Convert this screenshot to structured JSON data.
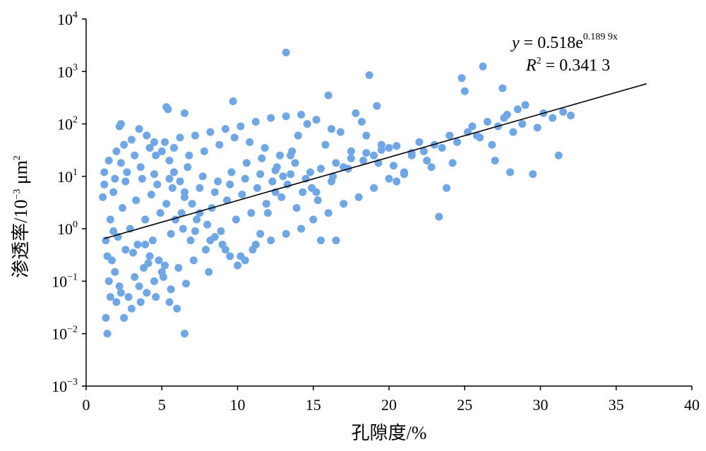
{
  "chart_data": {
    "type": "scatter",
    "title": "",
    "xlabel": "孔隙度/%",
    "ylabel_prefix": "渗透率/10",
    "ylabel_exp": "−3",
    "ylabel_unit": " μm",
    "ylabel_unit_exp": "2",
    "xlim": [
      0,
      40
    ],
    "ylim": [
      0.001,
      10000
    ],
    "yscale": "log",
    "x_ticks": [
      0,
      5,
      10,
      15,
      20,
      25,
      30,
      35,
      40
    ],
    "x_tick_labels": [
      "0",
      "5",
      "10",
      "15",
      "20",
      "25",
      "30",
      "35",
      "40"
    ],
    "y_ticks": [
      0.001,
      0.01,
      0.1,
      1,
      10,
      100,
      1000,
      10000
    ],
    "y_tick_base": "10",
    "y_tick_exps": [
      "−3",
      "−2",
      "−1",
      "0",
      "1",
      "2",
      "3",
      "4"
    ],
    "grid": false,
    "legend": "none",
    "point_color": "#6ea6e6",
    "trend_color": "#000000",
    "trendline": {
      "a": 0.518,
      "b": 0.1899,
      "x_start": 1.2,
      "x_end": 37.0
    },
    "annotation": {
      "eq_y": "y",
      "eq_mid": " = 0.518e",
      "eq_exp": "0.189 9x",
      "r2_r": "R",
      "r2_sup": "2",
      "r2_rest": " = 0.341 3"
    },
    "series": [
      {
        "points": [
          [
            13.2,
            2300
          ],
          [
            18.7,
            850
          ],
          [
            24.8,
            750
          ],
          [
            26.2,
            1250
          ],
          [
            27.5,
            480
          ],
          [
            25.0,
            420
          ],
          [
            16.0,
            350
          ],
          [
            9.7,
            270
          ],
          [
            5.3,
            210
          ],
          [
            5.4,
            190
          ],
          [
            6.5,
            160
          ],
          [
            2.3,
            100
          ],
          [
            2.2,
            90
          ],
          [
            30.8,
            130
          ],
          [
            31.5,
            170
          ],
          [
            32.0,
            145
          ],
          [
            29.0,
            230
          ],
          [
            28.5,
            190
          ],
          [
            27.8,
            150
          ],
          [
            26.5,
            110
          ],
          [
            25.5,
            90
          ],
          [
            24.0,
            60
          ],
          [
            23.5,
            35
          ],
          [
            22.5,
            20
          ],
          [
            21.0,
            12
          ],
          [
            20.5,
            8
          ],
          [
            28.0,
            12
          ],
          [
            29.5,
            11
          ],
          [
            27.0,
            20
          ],
          [
            31.2,
            25
          ],
          [
            23.3,
            1.7
          ],
          [
            23.8,
            6
          ],
          [
            26.0,
            55
          ],
          [
            24.5,
            45
          ],
          [
            19.5,
            40
          ],
          [
            19.0,
            25
          ],
          [
            18.5,
            60
          ],
          [
            17.5,
            30
          ],
          [
            17.0,
            15
          ],
          [
            16.5,
            0.6
          ],
          [
            15.5,
            0.6
          ],
          [
            17.8,
            160
          ],
          [
            19.2,
            220
          ],
          [
            18.2,
            110
          ],
          [
            20.0,
            35
          ],
          [
            21.5,
            28
          ],
          [
            22.0,
            45
          ],
          [
            16.8,
            70
          ],
          [
            15.8,
            40
          ],
          [
            14.6,
            100
          ],
          [
            14.0,
            60
          ],
          [
            13.5,
            25
          ],
          [
            13.0,
            10
          ],
          [
            12.5,
            5
          ],
          [
            12.0,
            2
          ],
          [
            11.5,
            0.8
          ],
          [
            11.0,
            0.4
          ],
          [
            10.5,
            0.25
          ],
          [
            10.0,
            0.2
          ],
          [
            9.5,
            0.3
          ],
          [
            9.0,
            0.5
          ],
          [
            8.5,
            0.7
          ],
          [
            8.0,
            1.2
          ],
          [
            7.5,
            2
          ],
          [
            7.0,
            3
          ],
          [
            6.5,
            5
          ],
          [
            6.2,
            8
          ],
          [
            5.8,
            12
          ],
          [
            5.5,
            20
          ],
          [
            5.0,
            30
          ],
          [
            4.5,
            45
          ],
          [
            4.0,
            60
          ],
          [
            3.5,
            80
          ],
          [
            3.0,
            50
          ],
          [
            2.5,
            40
          ],
          [
            2.0,
            30
          ],
          [
            1.5,
            20
          ],
          [
            1.2,
            12
          ],
          [
            1.3,
            0.6
          ],
          [
            1.4,
            0.3
          ],
          [
            1.5,
            0.1
          ],
          [
            1.6,
            0.05
          ],
          [
            1.3,
            0.02
          ],
          [
            1.4,
            0.01
          ],
          [
            6.5,
            0.01
          ],
          [
            6.0,
            0.03
          ],
          [
            5.5,
            0.04
          ],
          [
            2.5,
            0.02
          ],
          [
            3.0,
            0.03
          ],
          [
            2.8,
            0.05
          ],
          [
            3.5,
            0.08
          ],
          [
            4.0,
            0.06
          ],
          [
            4.5,
            0.1
          ],
          [
            5.0,
            0.15
          ],
          [
            5.2,
            0.2
          ],
          [
            4.8,
            0.25
          ],
          [
            4.2,
            0.3
          ],
          [
            3.8,
            0.18
          ],
          [
            3.2,
            0.12
          ],
          [
            2.2,
            0.08
          ],
          [
            1.9,
            0.15
          ],
          [
            1.7,
            0.25
          ],
          [
            2.6,
            0.4
          ],
          [
            3.4,
            0.5
          ],
          [
            4.4,
            0.6
          ],
          [
            5.6,
            0.8
          ],
          [
            6.4,
            1.0
          ],
          [
            7.2,
            0.9
          ],
          [
            8.2,
            0.6
          ],
          [
            9.2,
            0.4
          ],
          [
            10.2,
            0.3
          ],
          [
            11.2,
            0.5
          ],
          [
            12.2,
            0.6
          ],
          [
            13.2,
            0.8
          ],
          [
            14.2,
            1.0
          ],
          [
            15.0,
            1.5
          ],
          [
            16.0,
            2.0
          ],
          [
            17.0,
            3.0
          ],
          [
            18.0,
            4.0
          ],
          [
            19.0,
            6.0
          ],
          [
            20.0,
            9.0
          ],
          [
            21.0,
            11.0
          ],
          [
            15.2,
            5
          ],
          [
            16.2,
            8
          ],
          [
            14.8,
            12
          ],
          [
            13.8,
            18
          ],
          [
            12.8,
            25
          ],
          [
            11.8,
            35
          ],
          [
            10.8,
            45
          ],
          [
            9.8,
            55
          ],
          [
            8.8,
            40
          ],
          [
            7.8,
            30
          ],
          [
            6.8,
            25
          ],
          [
            5.8,
            35
          ],
          [
            4.6,
            25
          ],
          [
            3.6,
            15
          ],
          [
            2.6,
            8
          ],
          [
            1.8,
            5
          ],
          [
            1.1,
            4
          ],
          [
            2.4,
            2.5
          ],
          [
            3.3,
            3.5
          ],
          [
            4.3,
            4.5
          ],
          [
            5.3,
            3.0
          ],
          [
            6.3,
            2.0
          ],
          [
            7.3,
            1.5
          ],
          [
            8.3,
            2.5
          ],
          [
            9.3,
            3.5
          ],
          [
            10.3,
            4.5
          ],
          [
            11.3,
            6.0
          ],
          [
            12.3,
            8.0
          ],
          [
            13.3,
            7.0
          ],
          [
            14.3,
            5.0
          ],
          [
            15.3,
            3.5
          ],
          [
            16.3,
            10
          ],
          [
            17.3,
            14
          ],
          [
            18.3,
            20
          ],
          [
            19.3,
            18
          ],
          [
            20.3,
            16
          ],
          [
            22.3,
            30
          ],
          [
            23.0,
            40
          ],
          [
            25.2,
            70
          ],
          [
            27.2,
            90
          ],
          [
            28.8,
            100
          ],
          [
            2.9,
            1.0
          ],
          [
            3.9,
            1.5
          ],
          [
            4.9,
            2.0
          ],
          [
            5.9,
            1.5
          ],
          [
            6.9,
            0.6
          ],
          [
            7.9,
            0.4
          ],
          [
            8.9,
            0.9
          ],
          [
            9.9,
            1.5
          ],
          [
            10.9,
            2.0
          ],
          [
            11.9,
            3.0
          ],
          [
            12.9,
            4.0
          ],
          [
            13.9,
            2.5
          ],
          [
            14.9,
            6.0
          ],
          [
            1.6,
            1.5
          ],
          [
            2.1,
            0.7
          ],
          [
            3.1,
            0.35
          ],
          [
            4.1,
            0.22
          ],
          [
            5.1,
            0.12
          ],
          [
            6.1,
            0.18
          ],
          [
            7.1,
            0.25
          ],
          [
            8.1,
            0.15
          ],
          [
            2.7,
            12
          ],
          [
            3.7,
            9
          ],
          [
            4.7,
            7
          ],
          [
            5.7,
            6
          ],
          [
            6.7,
            15
          ],
          [
            7.7,
            10
          ],
          [
            8.7,
            8
          ],
          [
            9.6,
            12
          ],
          [
            10.6,
            18
          ],
          [
            11.6,
            22
          ],
          [
            12.6,
            15
          ],
          [
            13.6,
            30
          ],
          [
            1.2,
            7
          ],
          [
            1.9,
            9
          ],
          [
            2.3,
            18
          ],
          [
            3.2,
            25
          ],
          [
            4.2,
            35
          ],
          [
            5.2,
            45
          ],
          [
            6.2,
            55
          ],
          [
            7.2,
            60
          ],
          [
            8.2,
            70
          ],
          [
            9.2,
            80
          ],
          [
            10.2,
            90
          ],
          [
            11.2,
            110
          ],
          [
            12.2,
            130
          ],
          [
            13.2,
            140
          ],
          [
            14.2,
            150
          ],
          [
            15.2,
            120
          ],
          [
            16.2,
            80
          ],
          [
            2.0,
            0.04
          ],
          [
            2.3,
            0.06
          ],
          [
            3.6,
            0.04
          ],
          [
            4.6,
            0.05
          ],
          [
            5.6,
            0.07
          ],
          [
            6.6,
            0.09
          ],
          [
            3.9,
            0.5
          ],
          [
            1.8,
            0.9
          ],
          [
            4.5,
            11
          ],
          [
            5.5,
            9
          ],
          [
            6.5,
            4
          ],
          [
            7.5,
            6
          ],
          [
            8.5,
            5
          ],
          [
            9.5,
            7
          ],
          [
            10.5,
            9
          ],
          [
            11.5,
            11
          ],
          [
            12.5,
            13
          ],
          [
            13.5,
            11
          ],
          [
            14.5,
            9
          ],
          [
            15.5,
            14
          ],
          [
            16.5,
            18
          ],
          [
            17.5,
            22
          ],
          [
            18.5,
            28
          ],
          [
            19.5,
            32
          ],
          [
            20.5,
            38
          ],
          [
            21.5,
            25
          ],
          [
            24.2,
            18
          ],
          [
            26.8,
            40
          ],
          [
            25.8,
            60
          ],
          [
            29.8,
            85
          ],
          [
            30.2,
            160
          ],
          [
            27.6,
            130
          ],
          [
            28.2,
            70
          ],
          [
            22.8,
            15
          ]
        ]
      }
    ]
  }
}
